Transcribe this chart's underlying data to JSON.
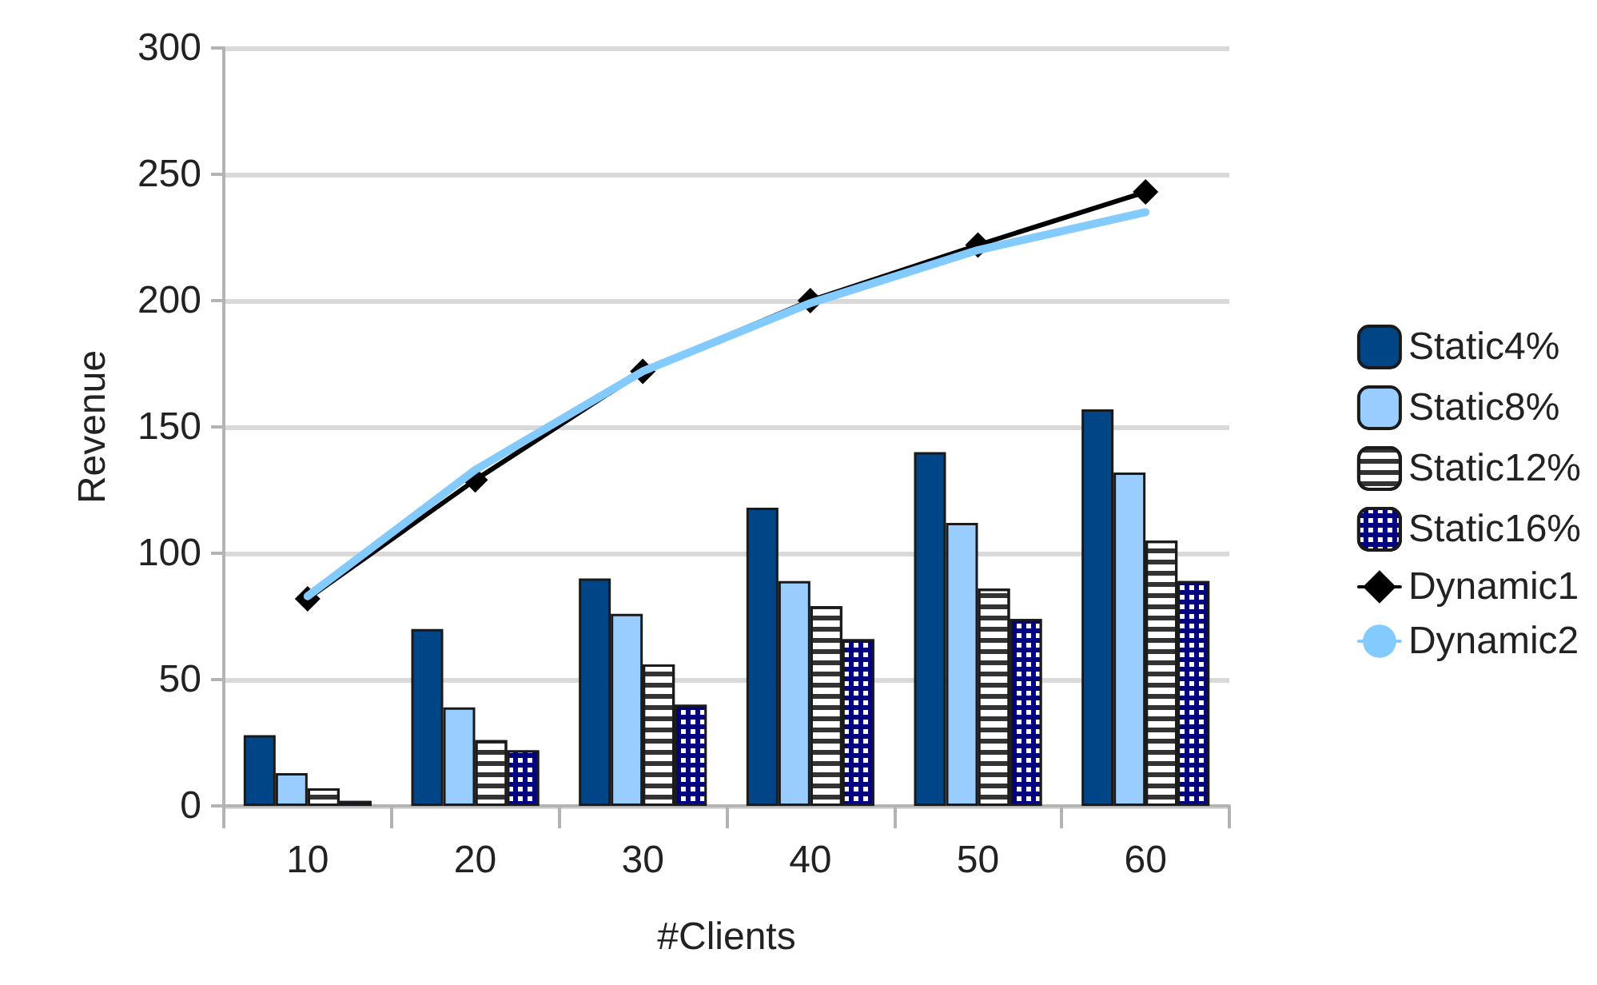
{
  "chart_data": {
    "type": "bar",
    "xlabel": "#Clients",
    "ylabel": "Revenue",
    "categories": [
      "10",
      "20",
      "30",
      "40",
      "50",
      "60"
    ],
    "series": [
      {
        "name": "Static4%",
        "color": "#004586",
        "values": [
          28,
          70,
          90,
          118,
          140,
          157
        ]
      },
      {
        "name": "Static8%",
        "color": "#99ccff",
        "values": [
          13,
          39,
          76,
          89,
          112,
          132
        ]
      },
      {
        "name": "Static12%",
        "color": "#ffffff",
        "values": [
          7,
          26,
          56,
          79,
          86,
          105
        ]
      },
      {
        "name": "Static16%",
        "color": "#000080",
        "values": [
          2,
          22,
          40,
          66,
          74,
          89
        ]
      },
      {
        "name": "Dynamic1",
        "type": "line",
        "color": "#000000",
        "marker": "diamond",
        "values": [
          82,
          129,
          172,
          200,
          222,
          243
        ]
      },
      {
        "name": "Dynamic2",
        "type": "line",
        "color": "#83caff",
        "marker": "none",
        "values": [
          83,
          133,
          172,
          199,
          220,
          235
        ]
      }
    ],
    "ylim": [
      0,
      300
    ],
    "yticks": [
      0,
      50,
      100,
      150,
      200,
      250,
      300
    ],
    "grid": "y",
    "legend": "right"
  }
}
